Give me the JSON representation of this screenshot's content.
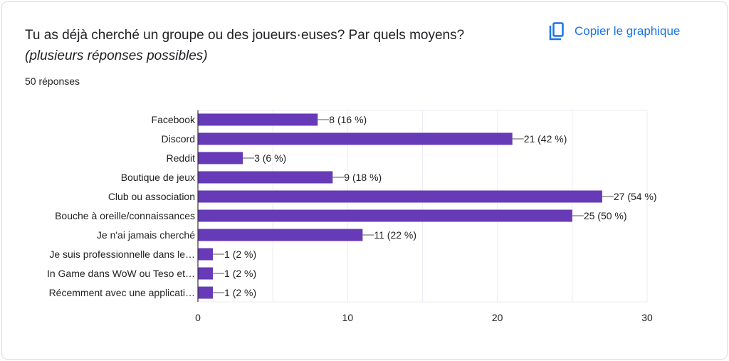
{
  "header": {
    "title": "Tu as déjà cherché un groupe ou des joueurs·euses? Par quels moyens?",
    "title_italic": "(plusieurs réponses possibles)",
    "response_count": "50 réponses",
    "copy_label": "Copier le graphique",
    "copy_icon": "copy-icon"
  },
  "colors": {
    "bar": "#673ab7",
    "accent": "#1a73e8"
  },
  "chart_data": {
    "type": "bar",
    "orientation": "horizontal",
    "categories": [
      "Facebook",
      "Discord",
      "Reddit",
      "Boutique de jeux",
      "Club ou association",
      "Bouche à oreille/connaissances",
      "Je n'ai jamais cherché",
      "Je suis professionnelle dans le…",
      "In Game dans WoW ou Teso et…",
      "Récemment avec une applicati…"
    ],
    "values": [
      8,
      21,
      3,
      9,
      27,
      25,
      11,
      1,
      1,
      1
    ],
    "data_labels": [
      "8 (16 %)",
      "21 (42 %)",
      "3 (6 %)",
      "9 (18 %)",
      "27 (54 %)",
      "25 (50 %)",
      "11 (22 %)",
      "1 (2 %)",
      "1 (2 %)",
      "1 (2 %)"
    ],
    "xlim": [
      0,
      30
    ],
    "xticks": [
      "0",
      "10",
      "20",
      "30"
    ],
    "grid": true,
    "legend": "none"
  }
}
